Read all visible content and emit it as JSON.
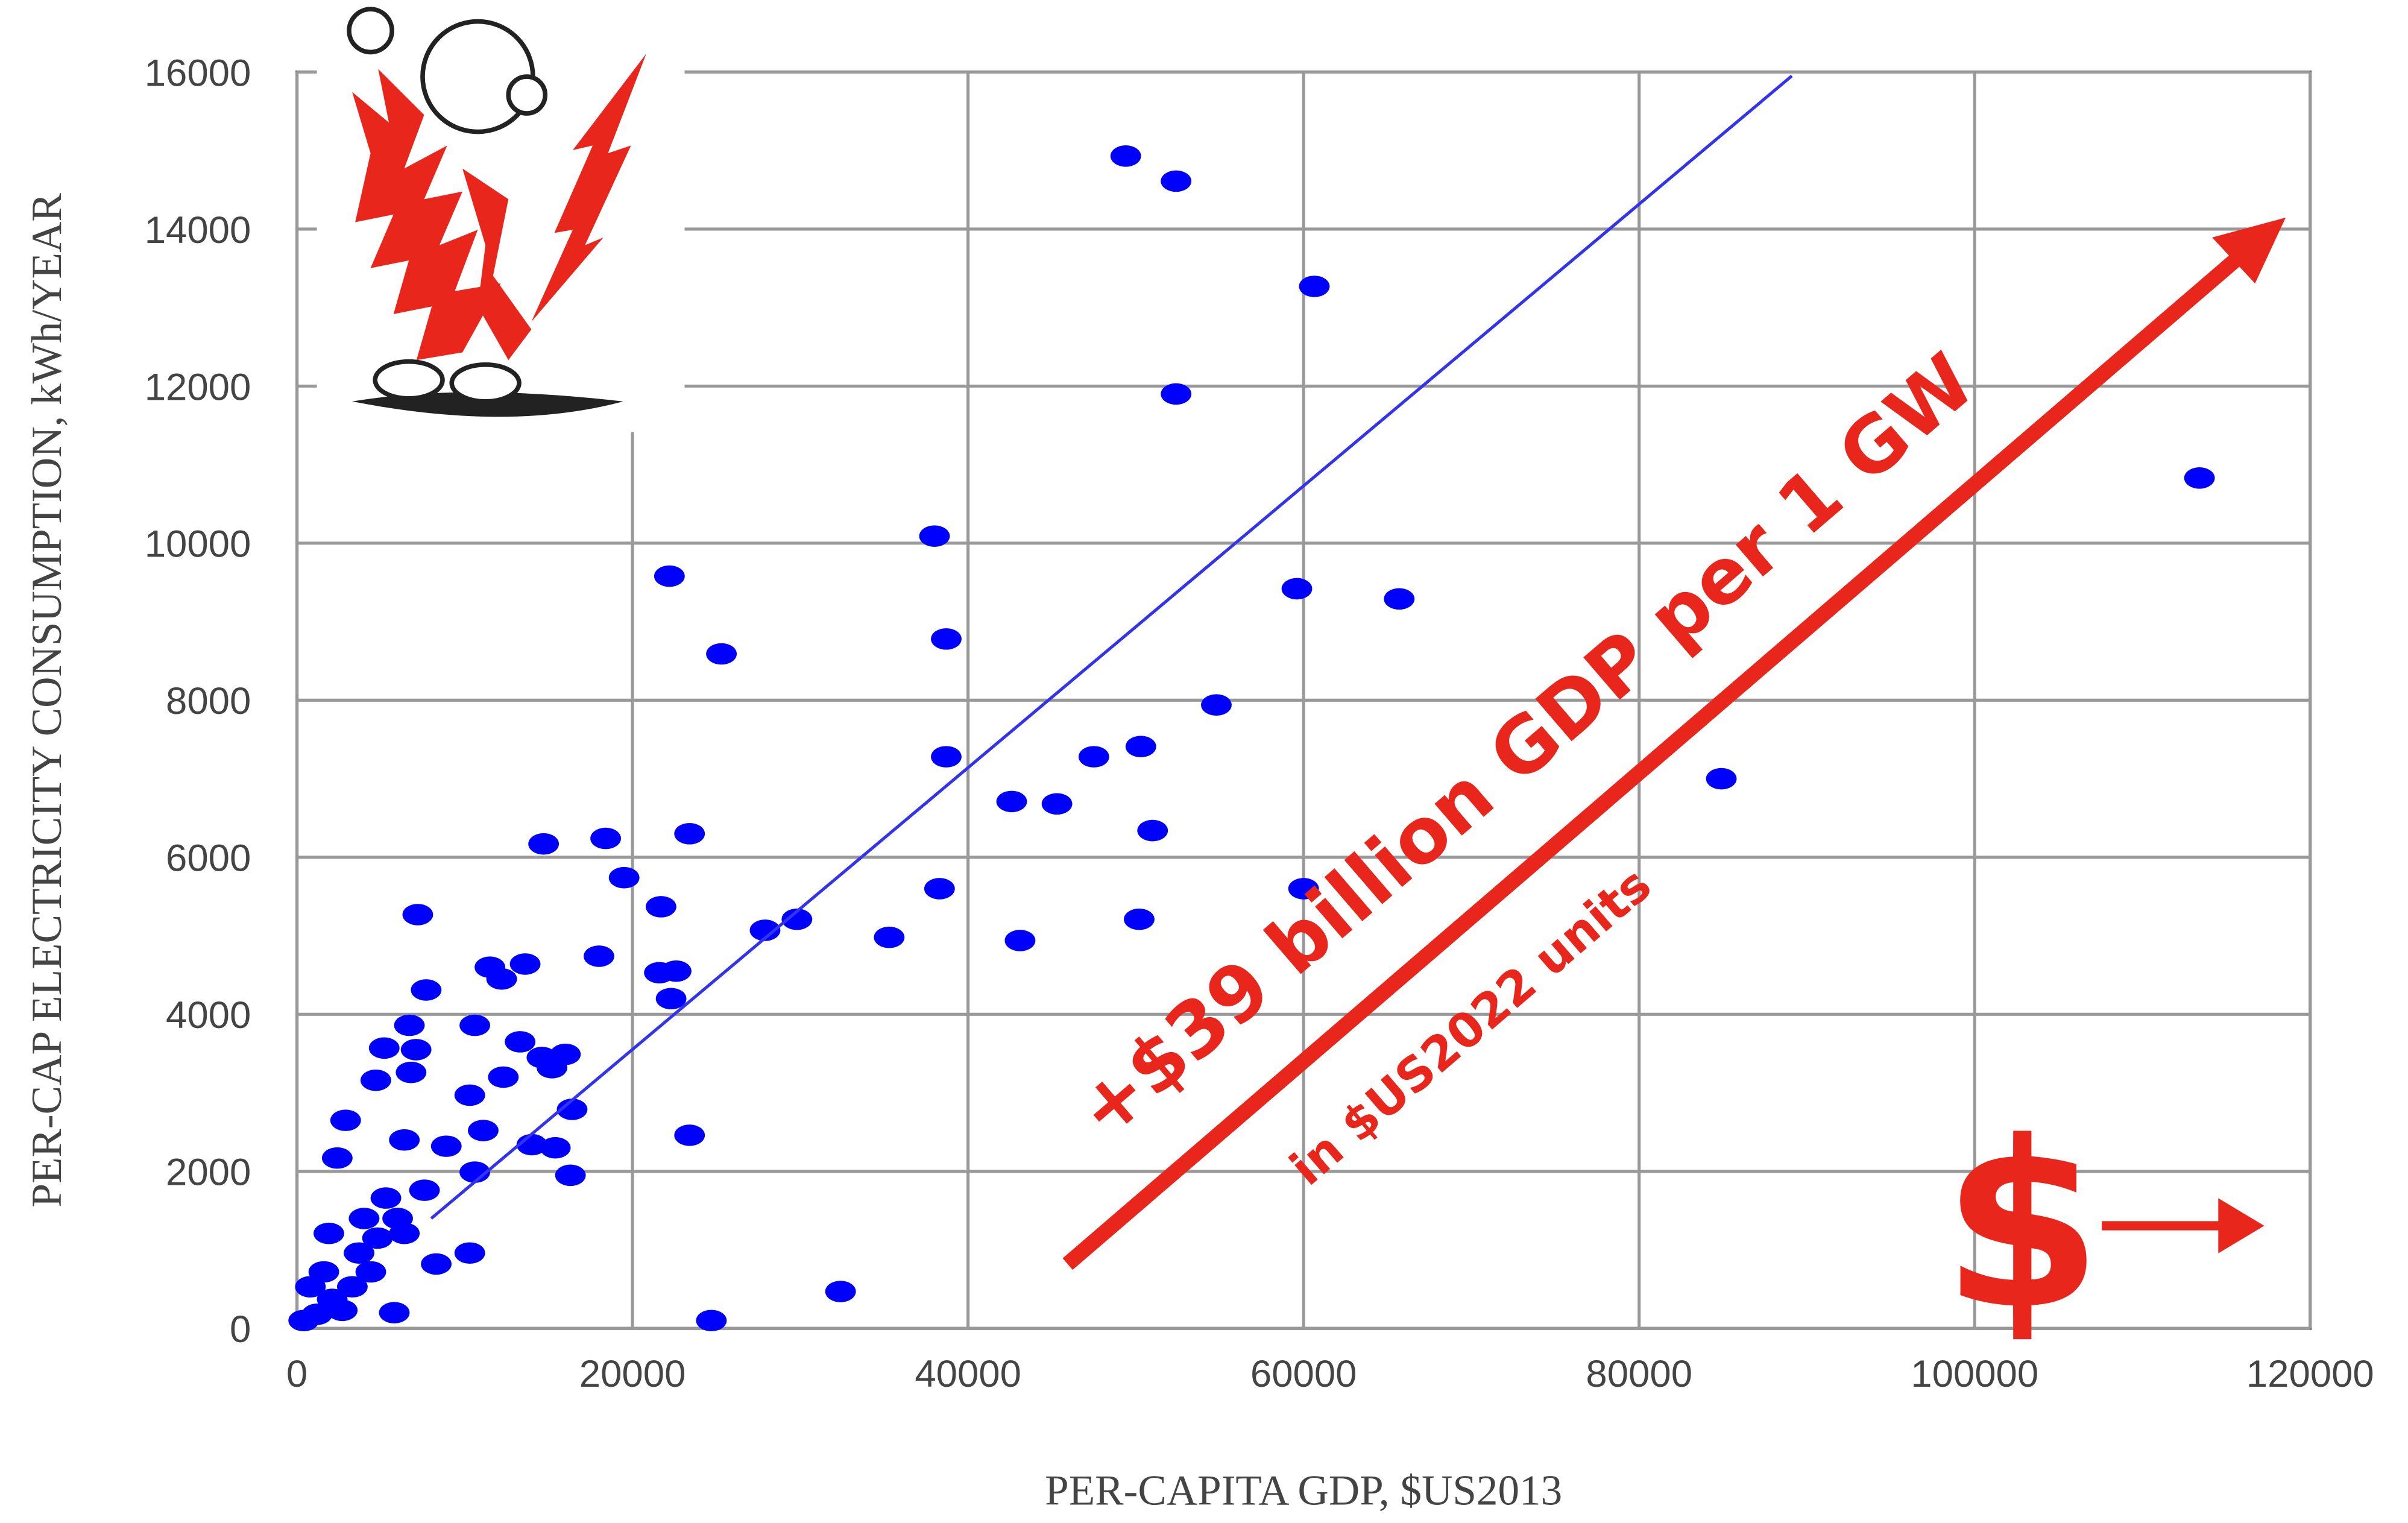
{
  "chart_data": {
    "type": "scatter",
    "x_label": "PER-CAPITA GDP, $US2013",
    "y_label": "PER-CAP ELECTRICITY CONSUMPTION, kWh/YEAR",
    "xlim": [
      0,
      120000
    ],
    "ylim": [
      0,
      16000
    ],
    "xticks": [
      0,
      20000,
      40000,
      60000,
      80000,
      100000,
      120000
    ],
    "yticks": [
      0,
      2000,
      4000,
      6000,
      8000,
      10000,
      12000,
      14000,
      16000
    ],
    "grid": true,
    "color": "#0000ff",
    "x": [
      49400,
      52400,
      60640,
      52400,
      113400,
      38000,
      22200,
      38700,
      25300,
      59600,
      65700,
      54800,
      38700,
      47500,
      50300,
      42600,
      45300,
      84900,
      51000,
      14700,
      18400,
      23400,
      19500,
      21700,
      38300,
      60000,
      7200,
      27900,
      29800,
      35300,
      43100,
      50200,
      18000,
      11500,
      13600,
      12200,
      21600,
      22600,
      22300,
      7700,
      6700,
      10600,
      5200,
      7100,
      13300,
      14600,
      16000,
      4700,
      6800,
      12300,
      15200,
      2900,
      10300,
      16400,
      11100,
      23400,
      6400,
      8900,
      14000,
      15400,
      2400,
      10600,
      16300,
      7600,
      5300,
      1900,
      6400,
      10300,
      8300,
      32400,
      24700,
      5800,
      400,
      1200,
      2100,
      3300,
      4400,
      3700,
      4800,
      2700,
      4000,
      6000,
      800,
      1600
    ],
    "values": [
      14930,
      14610,
      13270,
      11900,
      10830,
      10090,
      9580,
      8780,
      8590,
      9420,
      9290,
      7940,
      7280,
      7280,
      7410,
      6710,
      6680,
      7000,
      6340,
      6170,
      6240,
      6300,
      5740,
      5370,
      5600,
      5600,
      5270,
      5070,
      5210,
      4980,
      4940,
      5210,
      4740,
      4600,
      4640,
      4450,
      4530,
      4550,
      4200,
      4310,
      3860,
      3860,
      3570,
      3550,
      3650,
      3450,
      3490,
      3160,
      3260,
      3200,
      3320,
      2650,
      2970,
      2790,
      2520,
      2460,
      2400,
      2320,
      2340,
      2300,
      2170,
      1990,
      1950,
      1760,
      1660,
      1210,
      1210,
      960,
      820,
      470,
      100,
      200,
      100,
      180,
      370,
      530,
      720,
      960,
      1150,
      230,
      1400,
      1400,
      530,
      720
    ],
    "trend_line": {
      "x": [
        8000,
        89100
      ],
      "y": [
        1400,
        15950
      ],
      "color": "#3333ee"
    },
    "annotations": [
      {
        "text": "+$39 billion GDP per 1 GW"
      },
      {
        "text": "in $US2022 units"
      },
      {
        "text": "$"
      }
    ],
    "annotation_color": "#e8261c"
  }
}
